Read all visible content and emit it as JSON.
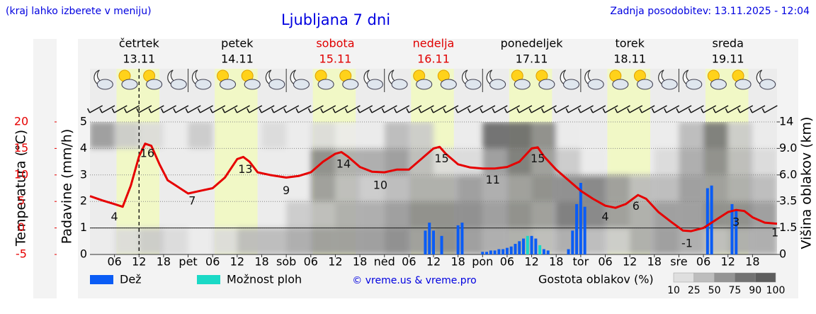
{
  "chart_data": {
    "type": "meteogram",
    "title": "Ljubljana 7 dni",
    "hint": "(kraj lahko izberete v meniju)",
    "updated": "Zadnja posodobitev: 13.11.2025 - 12:04",
    "credit": "© vreme.us & vreme.pro",
    "now": 12,
    "days": [
      {
        "name": "četrtek",
        "date": "13.11",
        "color": "#000000"
      },
      {
        "name": "petek",
        "date": "14.11",
        "color": "#000000"
      },
      {
        "name": "sobota",
        "date": "15.11",
        "color": "#e00000"
      },
      {
        "name": "nedelja",
        "date": "16.11",
        "color": "#e00000"
      },
      {
        "name": "ponedeljek",
        "date": "17.11",
        "color": "#000000"
      },
      {
        "name": "torek",
        "date": "18.11",
        "color": "#000000"
      },
      {
        "name": "sreda",
        "date": "19.11",
        "color": "#000000"
      }
    ],
    "xlim": [
      0,
      168
    ],
    "xticks": [
      {
        "value": 6,
        "label": "06"
      },
      12,
      18,
      {
        "value": 24,
        "label": "pet"
      },
      {
        "value": 30,
        "label": "06"
      },
      {
        "value": 36,
        "label": "12"
      },
      {
        "value": 42,
        "label": "18"
      },
      {
        "value": 48,
        "label": "sob"
      },
      {
        "value": 54,
        "label": "06"
      },
      {
        "value": 60,
        "label": "12"
      },
      {
        "value": 66,
        "label": "18"
      },
      {
        "value": 72,
        "label": "ned"
      },
      {
        "value": 78,
        "label": "06"
      },
      {
        "value": 84,
        "label": "12"
      },
      {
        "value": 90,
        "label": "18"
      },
      {
        "value": 96,
        "label": "pon"
      },
      {
        "value": 102,
        "label": "06"
      },
      {
        "value": 108,
        "label": "12"
      },
      {
        "value": 114,
        "label": "18"
      },
      {
        "value": 120,
        "label": "tor"
      },
      {
        "value": 126,
        "label": "06"
      },
      {
        "value": 132,
        "label": "12"
      },
      {
        "value": 138,
        "label": "18"
      },
      {
        "value": 144,
        "label": "sre"
      },
      {
        "value": 150,
        "label": "06"
      },
      {
        "value": 156,
        "label": "12"
      },
      {
        "value": 162,
        "label": "18"
      }
    ],
    "ylabel": "Padavine (mm/h)",
    "ylim": [
      0,
      5
    ],
    "yticks": [
      0,
      1,
      2,
      3,
      4,
      5
    ],
    "series": [
      {
        "name": "Dež",
        "color": "#0a5cf5",
        "x": [
          82,
          83,
          84,
          86,
          90,
          91,
          96,
          97,
          98,
          99,
          100,
          101,
          102,
          103,
          104,
          105,
          106,
          108,
          109,
          111,
          112,
          117,
          118,
          119,
          120,
          121,
          151,
          152,
          157,
          158
        ],
        "values": [
          0.9,
          1.2,
          0.9,
          0.7,
          1.1,
          1.2,
          0.1,
          0.1,
          0.15,
          0.15,
          0.2,
          0.2,
          0.25,
          0.3,
          0.4,
          0.5,
          0.6,
          0.7,
          0.6,
          0.2,
          0.15,
          0.2,
          0.9,
          1.9,
          2.7,
          1.8,
          2.5,
          2.6,
          1.9,
          1.7
        ]
      },
      {
        "name": "Možnost ploh",
        "color": "#1ad9c6",
        "x": [
          107,
          110
        ],
        "values": [
          0.7,
          0.35
        ]
      }
    ],
    "temperature": {
      "label": "Temperatura (°C)",
      "color": "#e60000",
      "ylim": [
        -5,
        20
      ],
      "yticks": [
        -5,
        0,
        5,
        10,
        15,
        20
      ],
      "x": [
        0,
        3,
        6,
        8,
        10,
        12,
        13.5,
        15,
        17,
        19,
        21,
        24,
        27,
        30,
        33,
        36,
        37.5,
        39,
        41,
        44,
        48,
        51,
        54,
        57,
        60,
        61.5,
        63,
        66,
        69,
        72,
        75,
        78,
        81,
        84,
        85.5,
        87,
        90,
        93,
        96,
        99,
        102,
        105,
        108,
        109.5,
        111,
        114,
        117,
        120,
        123,
        126,
        128.5,
        131,
        134,
        136,
        139,
        142,
        145,
        147,
        150,
        153,
        156,
        158,
        160,
        162,
        165,
        168
      ],
      "values": [
        6.0,
        5.2,
        4.5,
        4.0,
        8,
        13.5,
        15.9,
        15.5,
        12,
        9,
        8,
        6.5,
        7,
        7.5,
        9.5,
        13,
        13.4,
        12.5,
        10.5,
        10,
        9.5,
        9.8,
        10.5,
        12.5,
        14,
        14.3,
        13.5,
        11.5,
        10.6,
        10.5,
        11,
        11,
        13,
        15,
        15.3,
        14,
        12,
        11.4,
        11.2,
        11.2,
        11.5,
        12.5,
        15,
        15.2,
        13.5,
        11,
        9,
        7,
        5.5,
        4.2,
        3.8,
        4.5,
        6.2,
        5.5,
        3.0,
        1.2,
        -0.5,
        -0.6,
        0,
        1.5,
        3,
        3.4,
        3.2,
        2,
        1,
        0.8
      ],
      "extremes": [
        {
          "x": 6,
          "value": 4
        },
        {
          "x": 14,
          "value": 16
        },
        {
          "x": 25,
          "value": 7
        },
        {
          "x": 38,
          "value": 13
        },
        {
          "x": 48,
          "value": 9
        },
        {
          "x": 62,
          "value": 14
        },
        {
          "x": 71,
          "value": 10
        },
        {
          "x": 86,
          "value": 15
        },
        {
          "x": 98.5,
          "value": 11
        },
        {
          "x": 109.5,
          "value": 15
        },
        {
          "x": 126,
          "value": 4
        },
        {
          "x": 133.5,
          "value": 6
        },
        {
          "x": 146,
          "value": -1
        },
        {
          "x": 158,
          "value": 3
        },
        {
          "x": 167.5,
          "value": 1
        }
      ]
    },
    "clouds": {
      "label": "Višina oblakov (km)",
      "yticks": [
        0,
        1.5,
        3.5,
        {
          "value": 6,
          "label": "6.0"
        },
        {
          "value": 9,
          "label": "9.0"
        },
        14
      ],
      "legend_title": "Gostota oblakov (%)",
      "scale": [
        10,
        25,
        50,
        75,
        90,
        100
      ],
      "x": [
        0,
        6,
        12,
        18,
        24,
        30,
        36,
        42,
        48,
        54,
        60,
        66,
        72,
        78,
        84,
        90,
        96,
        102,
        108,
        114,
        120,
        126,
        132,
        138,
        144,
        150,
        156,
        162
      ],
      "density": [
        [
          0,
          0,
          0,
          0,
          60
        ],
        [
          20,
          0,
          0,
          0,
          30
        ],
        [
          30,
          0,
          0,
          0,
          20
        ],
        [
          20,
          0,
          0,
          0,
          0
        ],
        [
          0,
          0,
          0,
          0,
          30
        ],
        [
          20,
          0,
          0,
          0,
          0
        ],
        [
          40,
          0,
          0,
          0,
          0
        ],
        [
          40,
          0,
          0,
          0,
          20
        ],
        [
          50,
          30,
          0,
          0,
          0
        ],
        [
          60,
          40,
          60,
          70,
          20
        ],
        [
          60,
          50,
          40,
          50,
          10
        ],
        [
          60,
          50,
          30,
          50,
          10
        ],
        [
          70,
          60,
          40,
          60,
          40
        ],
        [
          60,
          70,
          50,
          40,
          30
        ],
        [
          70,
          70,
          50,
          20,
          0
        ],
        [
          60,
          70,
          60,
          20,
          0
        ],
        [
          50,
          60,
          50,
          60,
          90
        ],
        [
          50,
          70,
          60,
          80,
          90
        ],
        [
          40,
          60,
          70,
          60,
          70
        ],
        [
          50,
          80,
          70,
          30,
          10
        ],
        [
          40,
          75,
          75,
          10,
          0
        ],
        [
          30,
          60,
          60,
          0,
          0
        ],
        [
          50,
          50,
          40,
          0,
          0
        ],
        [
          60,
          60,
          40,
          20,
          0
        ],
        [
          50,
          60,
          60,
          50,
          40
        ],
        [
          40,
          70,
          60,
          70,
          80
        ],
        [
          50,
          70,
          50,
          40,
          30
        ],
        [
          50,
          60,
          40,
          20,
          10
        ]
      ]
    }
  }
}
